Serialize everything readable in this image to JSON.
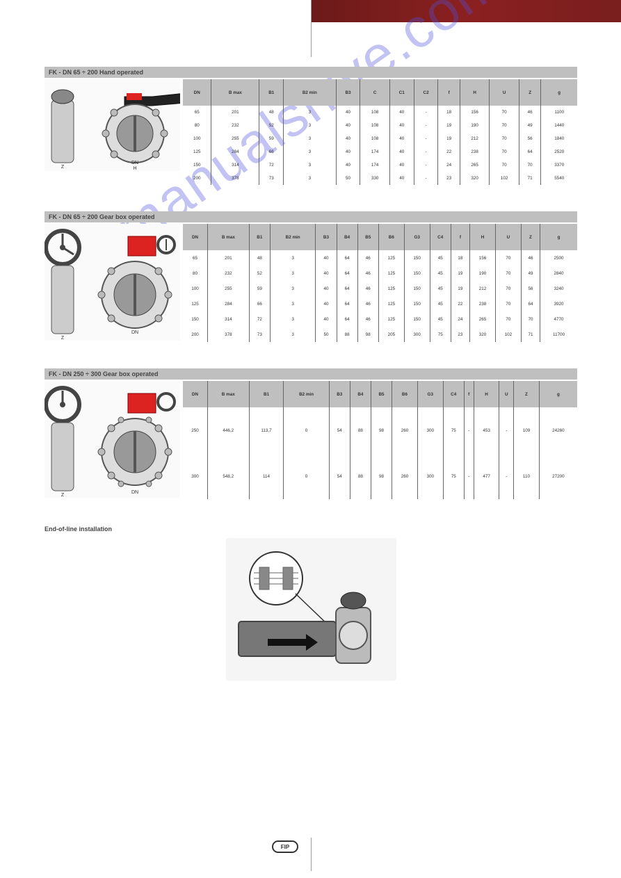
{
  "watermark": "manualshive.com",
  "footer_logo": "FIP",
  "section1": {
    "title": "FK - DN 65 ÷ 200 Hand operated",
    "columns": [
      "DN",
      "B max",
      "B1",
      "B2 min",
      "B3",
      "C",
      "C1",
      "C2",
      "f",
      "H",
      "U",
      "Z",
      "g"
    ],
    "rows": [
      [
        "65",
        "201",
        "48",
        "3",
        "40",
        "108",
        "40",
        "-",
        "18",
        "156",
        "70",
        "46",
        "1100"
      ],
      [
        "80",
        "232",
        "52",
        "3",
        "40",
        "108",
        "40",
        "-",
        "19",
        "190",
        "70",
        "49",
        "1440"
      ],
      [
        "100",
        "255",
        "59",
        "3",
        "40",
        "108",
        "40",
        "-",
        "19",
        "212",
        "70",
        "56",
        "1840"
      ],
      [
        "125",
        "284",
        "66",
        "3",
        "40",
        "174",
        "40",
        "-",
        "22",
        "238",
        "70",
        "64",
        "2520"
      ],
      [
        "150",
        "314",
        "72",
        "3",
        "40",
        "174",
        "40",
        "-",
        "24",
        "265",
        "70",
        "70",
        "3370"
      ],
      [
        "200",
        "378",
        "73",
        "3",
        "50",
        "330",
        "40",
        "-",
        "23",
        "320",
        "102",
        "71",
        "5540"
      ]
    ]
  },
  "section2": {
    "title": "FK - DN 65 ÷ 200 Gear box operated",
    "columns": [
      "DN",
      "B max",
      "B1",
      "B2 min",
      "B3",
      "B4",
      "B5",
      "B6",
      "G3",
      "C4",
      "f",
      "H",
      "U",
      "Z",
      "g"
    ],
    "rows": [
      [
        "65",
        "201",
        "48",
        "3",
        "40",
        "64",
        "46",
        "125",
        "150",
        "45",
        "18",
        "156",
        "70",
        "46",
        "2500"
      ],
      [
        "80",
        "232",
        "52",
        "3",
        "40",
        "64",
        "46",
        "125",
        "150",
        "45",
        "19",
        "190",
        "70",
        "49",
        "2840"
      ],
      [
        "100",
        "255",
        "59",
        "3",
        "40",
        "64",
        "46",
        "125",
        "150",
        "45",
        "19",
        "212",
        "70",
        "56",
        "3240"
      ],
      [
        "125",
        "284",
        "66",
        "3",
        "40",
        "64",
        "46",
        "125",
        "150",
        "45",
        "22",
        "238",
        "70",
        "64",
        "3920"
      ],
      [
        "150",
        "314",
        "72",
        "3",
        "40",
        "64",
        "46",
        "125",
        "150",
        "45",
        "24",
        "265",
        "70",
        "70",
        "4770"
      ],
      [
        "200",
        "378",
        "73",
        "3",
        "50",
        "88",
        "98",
        "205",
        "300",
        "75",
        "23",
        "320",
        "102",
        "71",
        "11700"
      ]
    ]
  },
  "section3": {
    "title": "FK - DN 250 ÷ 300 Gear box operated",
    "columns": [
      "DN",
      "B max",
      "B1",
      "B2 min",
      "B3",
      "B4",
      "B5",
      "B6",
      "G3",
      "C4",
      "f",
      "H",
      "U",
      "Z",
      "g"
    ],
    "rows": [
      [
        "250",
        "446,2",
        "113,7",
        "0",
        "54",
        "88",
        "98",
        "260",
        "300",
        "75",
        "-",
        "453",
        "-",
        "109",
        "24260"
      ],
      [
        "300",
        "548,2",
        "114",
        "0",
        "54",
        "88",
        "98",
        "260",
        "300",
        "75",
        "-",
        "477",
        "-",
        "110",
        "27200"
      ]
    ]
  },
  "end_install": {
    "title": "End-of-line installation"
  }
}
